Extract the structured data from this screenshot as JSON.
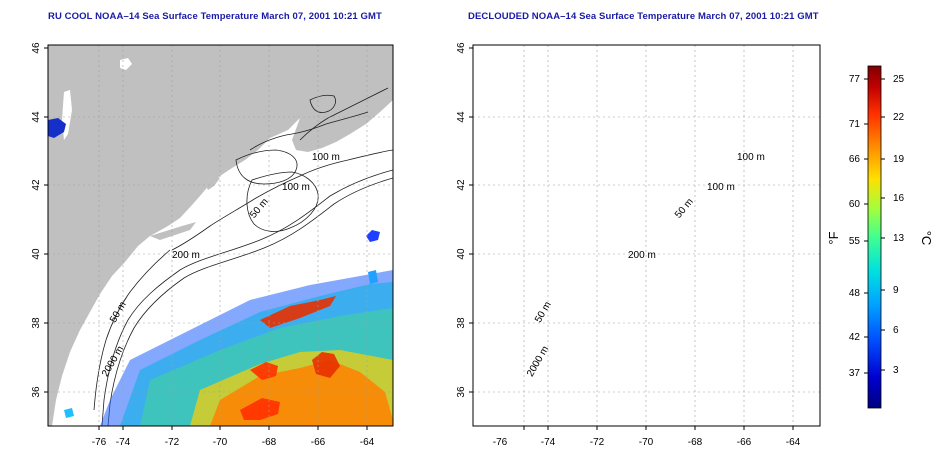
{
  "panels": [
    {
      "title": "RU COOL NOAA–14 Sea Surface Temperature March 07, 2001 10:21 GMT",
      "lon_ticks": [
        "-76",
        "-74",
        "-72",
        "-70",
        "-68",
        "-66",
        "-64"
      ],
      "lat_ticks": [
        "46",
        "44",
        "42",
        "40",
        "38",
        "36"
      ],
      "contour_labels": [
        "100 m",
        "100 m",
        "50 m",
        "200 m",
        "50 m",
        "2000 m"
      ]
    },
    {
      "title": "DECLOUDED NOAA–14 Sea Surface Temperature March 07, 2001 10:21 GMT",
      "lon_ticks": [
        "-76",
        "-74",
        "-72",
        "-70",
        "-68",
        "-66",
        "-64"
      ],
      "lat_ticks": [
        "46",
        "44",
        "42",
        "40",
        "38",
        "36"
      ],
      "contour_labels": [
        "100 m",
        "100 m",
        "50 m",
        "200 m",
        "50 m",
        "2000 m"
      ]
    }
  ],
  "colorbar": {
    "unit_f": "°F",
    "unit_c": "°C",
    "f_ticks": [
      "77",
      "71",
      "66",
      "60",
      "55",
      "48",
      "42",
      "37"
    ],
    "c_ticks": [
      "25",
      "22",
      "19",
      "16",
      "13",
      "9",
      "6",
      "3"
    ],
    "colors": [
      "#000080",
      "#0000d0",
      "#0050ff",
      "#00a0ff",
      "#00e0e0",
      "#40ff90",
      "#a0ff40",
      "#ffe000",
      "#ff9000",
      "#ff3000",
      "#c00000",
      "#800000"
    ]
  },
  "land_color": "#c0c0c0",
  "ocean_color": "#ffffff"
}
